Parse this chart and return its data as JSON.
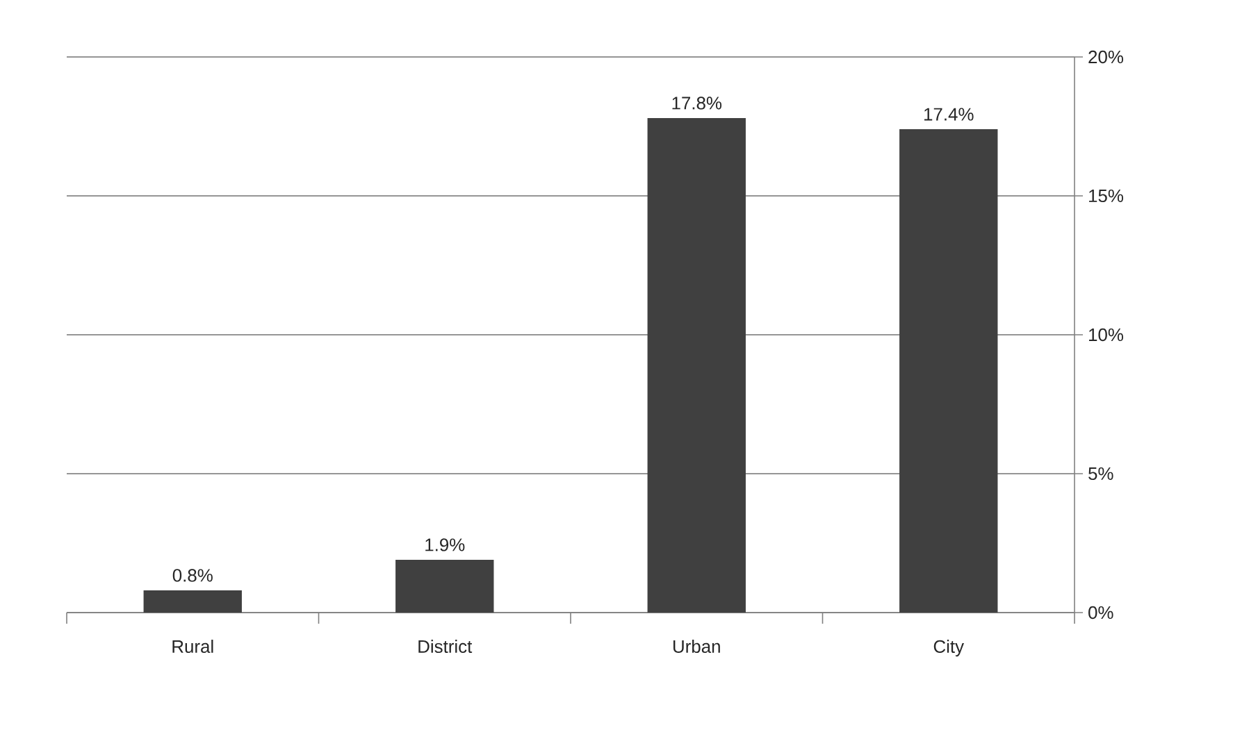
{
  "chart_data": {
    "type": "bar",
    "categories": [
      "Rural",
      "District",
      "Urban",
      "City"
    ],
    "values": [
      0.8,
      1.9,
      17.8,
      17.4
    ],
    "value_labels": [
      "0.8%",
      "1.9%",
      "17.8%",
      "17.4%"
    ],
    "color": "#404040",
    "ylim": [
      0,
      20
    ],
    "yticks": [
      {
        "value": 0,
        "label": "0%"
      },
      {
        "value": 5,
        "label": "5%"
      },
      {
        "value": 10,
        "label": "10%"
      },
      {
        "value": 15,
        "label": "15%"
      },
      {
        "value": 20,
        "label": "20%"
      }
    ],
    "grid": "y"
  }
}
